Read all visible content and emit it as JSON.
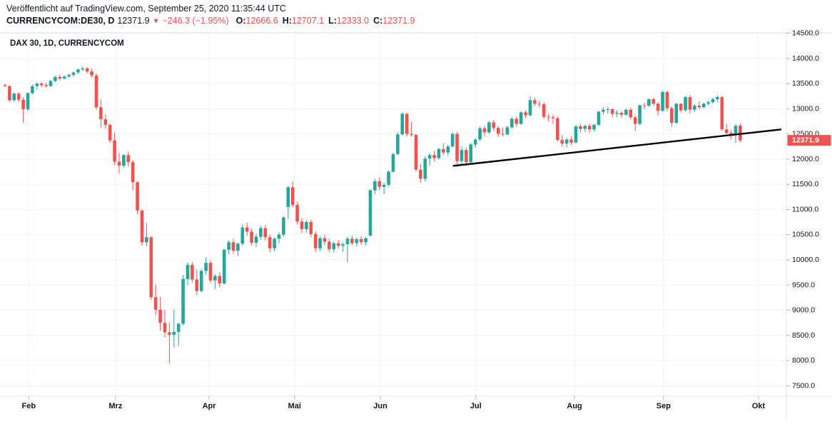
{
  "header": {
    "published": "Veröffentlicht auf TradingView.com, September 25, 2020 11:35:44 UTC",
    "symbol": "CURRENCYCOM:DE30, D",
    "last_price": "12371.9",
    "direction_arrow": "▼",
    "change": "−246.3 (−1.95%)",
    "ohlc": [
      {
        "label": "O:",
        "value": "12666.6"
      },
      {
        "label": "H:",
        "value": "12707.1"
      },
      {
        "label": "L:",
        "value": "12333.0"
      },
      {
        "label": "C:",
        "value": "12371.9"
      }
    ]
  },
  "chart": {
    "watermark": "DAX 30, 1D, CURRENCYCOM",
    "price_label": "12371.9",
    "colors": {
      "up": "#26a69a",
      "down": "#ef5350",
      "grid": "#f0f3fa",
      "border": "#e0e3eb",
      "text": "#131722",
      "tick": "#b2b5be",
      "trendline": "#000000",
      "label_bg": "#ef5350",
      "label_text": "#ffffff"
    }
  },
  "chart_data": {
    "type": "candlestick",
    "title": "DAX 30, 1D, CURRENCYCOM",
    "symbol": "CURRENCYCOM:DE30",
    "interval": "1D",
    "ylim": [
      7293,
      14507
    ],
    "y_ticks": [
      14500,
      14000,
      13500,
      13000,
      12500,
      12000,
      11500,
      11000,
      10500,
      10000,
      9500,
      9000,
      8500,
      8000,
      7500
    ],
    "months": [
      {
        "label": "Feb",
        "index": 5.2
      },
      {
        "label": "Mrz",
        "index": 24.2
      },
      {
        "label": "Apr",
        "index": 44.7
      },
      {
        "label": "Mai",
        "index": 63.4
      },
      {
        "label": "Jun",
        "index": 82.2
      },
      {
        "label": "Jul",
        "index": 103.1
      },
      {
        "label": "Aug",
        "index": 124.7
      },
      {
        "label": "Sep",
        "index": 144.2
      },
      {
        "label": "Okt",
        "index": 165
      }
    ],
    "trendline": {
      "from_index": 98.1,
      "from_price": 11865,
      "to_index": 170,
      "to_price": 12590
    },
    "last_close": 12371.9,
    "candles": [
      [
        13470,
        13500,
        13430,
        13450
      ],
      [
        13450,
        13465,
        13140,
        13170
      ],
      [
        13170,
        13320,
        13130,
        13300
      ],
      [
        13300,
        13330,
        13130,
        13180
      ],
      [
        13180,
        13230,
        12720,
        12990
      ],
      [
        12990,
        13330,
        12960,
        13310
      ],
      [
        13310,
        13480,
        13290,
        13450
      ],
      [
        13450,
        13520,
        13380,
        13500
      ],
      [
        13500,
        13530,
        13430,
        13470
      ],
      [
        13470,
        13510,
        13420,
        13450
      ],
      [
        13450,
        13570,
        13430,
        13550
      ],
      [
        13550,
        13650,
        13530,
        13630
      ],
      [
        13630,
        13680,
        13560,
        13600
      ],
      [
        13600,
        13660,
        13580,
        13640
      ],
      [
        13640,
        13700,
        13620,
        13670
      ],
      [
        13670,
        13740,
        13640,
        13720
      ],
      [
        13720,
        13800,
        13690,
        13780
      ],
      [
        13780,
        13840,
        13750,
        13800
      ],
      [
        13800,
        13830,
        13700,
        13740
      ],
      [
        13740,
        13800,
        13620,
        13660
      ],
      [
        13660,
        13700,
        12980,
        13030
      ],
      [
        13030,
        13190,
        12620,
        12790
      ],
      [
        12790,
        12890,
        12600,
        12680
      ],
      [
        12680,
        12700,
        12320,
        12370
      ],
      [
        12370,
        12530,
        11880,
        11950
      ],
      [
        11950,
        12120,
        11710,
        11870
      ],
      [
        11870,
        12100,
        11830,
        12080
      ],
      [
        12080,
        12150,
        11850,
        11940
      ],
      [
        11940,
        11980,
        11380,
        11540
      ],
      [
        11540,
        11560,
        10900,
        10980
      ],
      [
        10980,
        11000,
        10280,
        10350
      ],
      [
        10350,
        10730,
        10270,
        10450
      ],
      [
        10450,
        10470,
        9200,
        9260
      ],
      [
        9260,
        9510,
        8900,
        9010
      ],
      [
        9010,
        9260,
        8600,
        8750
      ],
      [
        8750,
        9010,
        8460,
        8560
      ],
      [
        8560,
        8760,
        7940,
        8510
      ],
      [
        8510,
        9010,
        8260,
        8570
      ],
      [
        8570,
        8750,
        8290,
        8730
      ],
      [
        8730,
        9700,
        8700,
        9620
      ],
      [
        9620,
        9950,
        9500,
        9900
      ],
      [
        9900,
        9960,
        9550,
        9610
      ],
      [
        9610,
        9800,
        9300,
        9380
      ],
      [
        9380,
        9820,
        9350,
        9780
      ],
      [
        9780,
        10050,
        9700,
        9940
      ],
      [
        9940,
        9990,
        9540,
        9590
      ],
      [
        9590,
        9720,
        9420,
        9680
      ],
      [
        9680,
        9750,
        9450,
        9530
      ],
      [
        9530,
        10220,
        9510,
        10200
      ],
      [
        10200,
        10390,
        10110,
        10350
      ],
      [
        10350,
        10420,
        10120,
        10180
      ],
      [
        10180,
        10340,
        10080,
        10320
      ],
      [
        10320,
        10700,
        10280,
        10640
      ],
      [
        10640,
        10740,
        10480,
        10560
      ],
      [
        10560,
        10620,
        10280,
        10340
      ],
      [
        10340,
        10520,
        10250,
        10460
      ],
      [
        10460,
        10680,
        10400,
        10630
      ],
      [
        10630,
        10690,
        10380,
        10450
      ],
      [
        10450,
        10500,
        10150,
        10230
      ],
      [
        10230,
        10450,
        10170,
        10420
      ],
      [
        10420,
        10550,
        10330,
        10500
      ],
      [
        10500,
        10870,
        10460,
        10840
      ],
      [
        11050,
        11470,
        10810,
        11440
      ],
      [
        11440,
        11560,
        11040,
        11090
      ],
      [
        11090,
        11150,
        10700,
        10760
      ],
      [
        10760,
        10830,
        10540,
        10610
      ],
      [
        10610,
        10790,
        10540,
        10750
      ],
      [
        10750,
        10800,
        10450,
        10510
      ],
      [
        10510,
        10570,
        10150,
        10230
      ],
      [
        10230,
        10470,
        10170,
        10430
      ],
      [
        10430,
        10490,
        10290,
        10360
      ],
      [
        10360,
        10420,
        10150,
        10210
      ],
      [
        10210,
        10360,
        10140,
        10330
      ],
      [
        10330,
        10390,
        10230,
        10280
      ],
      [
        10280,
        10340,
        10160,
        10310
      ],
      [
        10310,
        10460,
        9950,
        10420
      ],
      [
        10420,
        10480,
        10280,
        10330
      ],
      [
        10330,
        10440,
        10270,
        10410
      ],
      [
        10410,
        10470,
        10300,
        10350
      ],
      [
        10350,
        10450,
        10280,
        10430
      ],
      [
        10480,
        11400,
        10460,
        11380
      ],
      [
        11380,
        11610,
        11300,
        11560
      ],
      [
        11560,
        11640,
        11380,
        11450
      ],
      [
        11450,
        11530,
        11300,
        11490
      ],
      [
        11490,
        11780,
        11460,
        11750
      ],
      [
        11750,
        12130,
        11730,
        12100
      ],
      [
        12100,
        12530,
        12080,
        12490
      ],
      [
        12490,
        12930,
        12470,
        12900
      ],
      [
        12900,
        12910,
        12450,
        12500
      ],
      [
        12500,
        12740,
        12450,
        12480
      ],
      [
        12480,
        12500,
        11750,
        11790
      ],
      [
        11790,
        11900,
        11530,
        11610
      ],
      [
        11610,
        12060,
        11560,
        12010
      ],
      [
        12010,
        12120,
        11870,
        12080
      ],
      [
        12080,
        12160,
        11950,
        12020
      ],
      [
        12020,
        12230,
        11990,
        12200
      ],
      [
        12200,
        12310,
        12080,
        12130
      ],
      [
        12130,
        12280,
        12060,
        12250
      ],
      [
        12250,
        12530,
        12230,
        12500
      ],
      [
        12500,
        12540,
        11900,
        11960
      ],
      [
        11960,
        12250,
        11880,
        12180
      ],
      [
        12180,
        12230,
        11870,
        11940
      ],
      [
        11940,
        12320,
        11920,
        12290
      ],
      [
        12290,
        12420,
        12230,
        12390
      ],
      [
        12390,
        12640,
        12360,
        12610
      ],
      [
        12610,
        12660,
        12450,
        12530
      ],
      [
        12530,
        12760,
        12500,
        12730
      ],
      [
        12730,
        12780,
        12560,
        12620
      ],
      [
        12620,
        12660,
        12440,
        12500
      ],
      [
        12500,
        12620,
        12460,
        12490
      ],
      [
        12490,
        12660,
        12470,
        12630
      ],
      [
        12630,
        12830,
        12610,
        12800
      ],
      [
        12800,
        12840,
        12640,
        12700
      ],
      [
        12700,
        12950,
        12680,
        12930
      ],
      [
        12930,
        12970,
        12810,
        12870
      ],
      [
        12870,
        13250,
        12850,
        13170
      ],
      [
        13170,
        13220,
        13050,
        13100
      ],
      [
        13100,
        13160,
        13030,
        13090
      ],
      [
        13090,
        13130,
        12800,
        12840
      ],
      [
        12840,
        12900,
        12750,
        12830
      ],
      [
        12830,
        12880,
        12700,
        12810
      ],
      [
        12810,
        12850,
        12350,
        12380
      ],
      [
        12380,
        12480,
        12250,
        12310
      ],
      [
        12310,
        12420,
        12230,
        12390
      ],
      [
        12390,
        12450,
        12280,
        12330
      ],
      [
        12330,
        12680,
        12310,
        12650
      ],
      [
        12650,
        12700,
        12530,
        12600
      ],
      [
        12600,
        12680,
        12540,
        12660
      ],
      [
        12660,
        12700,
        12520,
        12590
      ],
      [
        12590,
        12700,
        12550,
        12680
      ],
      [
        12680,
        12960,
        12660,
        12940
      ],
      [
        12940,
        13030,
        12880,
        12980
      ],
      [
        12980,
        13040,
        12900,
        12990
      ],
      [
        12990,
        13010,
        12840,
        12900
      ],
      [
        12900,
        12970,
        12830,
        12920
      ],
      [
        12920,
        12950,
        12820,
        12880
      ],
      [
        12880,
        13000,
        12860,
        12980
      ],
      [
        12980,
        13020,
        12790,
        12830
      ],
      [
        12830,
        12870,
        12560,
        12700
      ],
      [
        12700,
        13080,
        12680,
        13070
      ],
      [
        13070,
        13120,
        12990,
        13060
      ],
      [
        13060,
        13200,
        13040,
        13190
      ],
      [
        13190,
        13220,
        13060,
        13100
      ],
      [
        13100,
        13130,
        12870,
        12960
      ],
      [
        12960,
        13360,
        12940,
        13330
      ],
      [
        13330,
        13360,
        12950,
        13010
      ],
      [
        13010,
        13040,
        12640,
        12720
      ],
      [
        12720,
        13120,
        12700,
        13100
      ],
      [
        13100,
        13110,
        12930,
        12970
      ],
      [
        12970,
        13250,
        12950,
        13230
      ],
      [
        13230,
        13270,
        12910,
        12980
      ],
      [
        12980,
        13090,
        12940,
        13060
      ],
      [
        13060,
        13150,
        12990,
        13030
      ],
      [
        13030,
        13120,
        13000,
        13100
      ],
      [
        13100,
        13160,
        13060,
        13130
      ],
      [
        13130,
        13220,
        13100,
        13190
      ],
      [
        13190,
        13260,
        13130,
        13230
      ],
      [
        13230,
        13260,
        12560,
        12590
      ],
      [
        12590,
        12700,
        12450,
        12520
      ],
      [
        12520,
        12580,
        12390,
        12480
      ],
      [
        12480,
        12700,
        12320,
        12660
      ],
      [
        12666.6,
        12707.1,
        12333.0,
        12371.9
      ]
    ]
  }
}
